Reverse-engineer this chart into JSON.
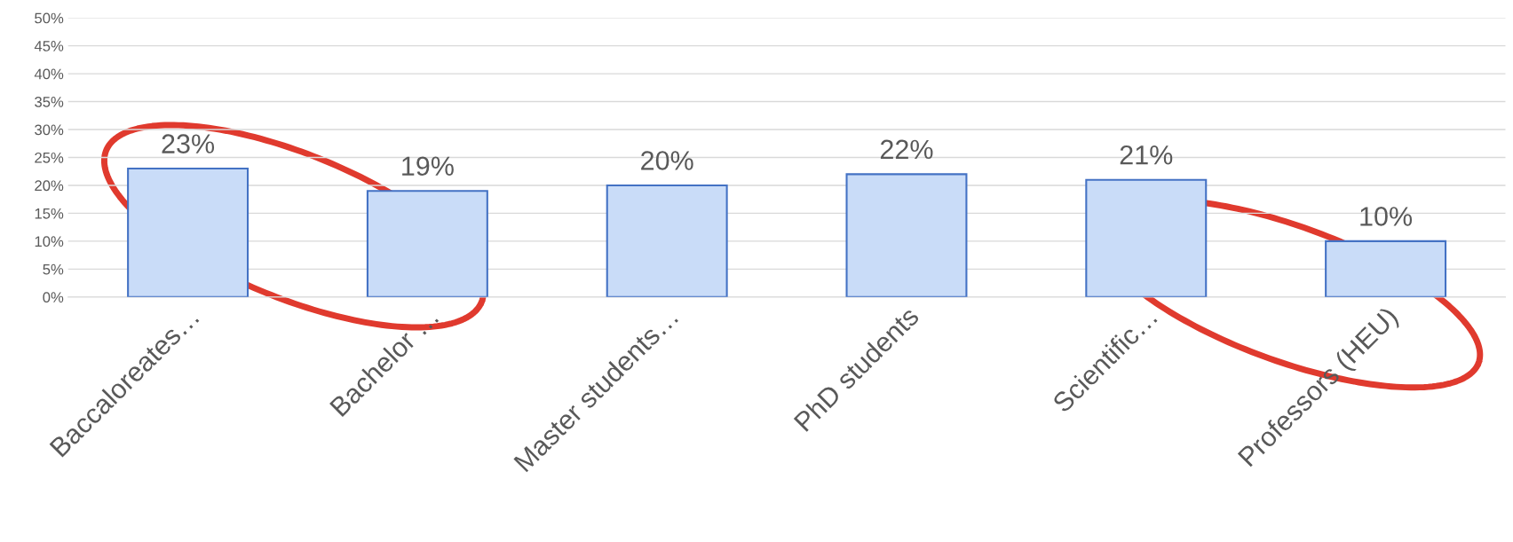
{
  "chart_data": {
    "type": "bar",
    "categories": [
      "Baccaloreates…",
      "Bachelor …",
      "Master students…",
      "PhD students",
      "Scientific…",
      "Professors (HEU)"
    ],
    "values": [
      23,
      19,
      20,
      22,
      21,
      10
    ],
    "color": "#c9dcf8",
    "data_labels": true,
    "value_labels": [
      "23%",
      "19%",
      "20%",
      "22%",
      "21%",
      "10%"
    ],
    "ylim": [
      0,
      50
    ],
    "yticks": [
      {
        "value": 0,
        "label": "0%"
      },
      {
        "value": 5,
        "label": "5%"
      },
      {
        "value": 10,
        "label": "10%"
      },
      {
        "value": 15,
        "label": "15%"
      },
      {
        "value": 20,
        "label": "20%"
      },
      {
        "value": 25,
        "label": "25%"
      },
      {
        "value": 30,
        "label": "30%"
      },
      {
        "value": 35,
        "label": "35%"
      },
      {
        "value": 40,
        "label": "40%"
      },
      {
        "value": 45,
        "label": "45%"
      },
      {
        "value": 50,
        "label": "50%"
      }
    ],
    "grid": "y",
    "legend": false
  }
}
